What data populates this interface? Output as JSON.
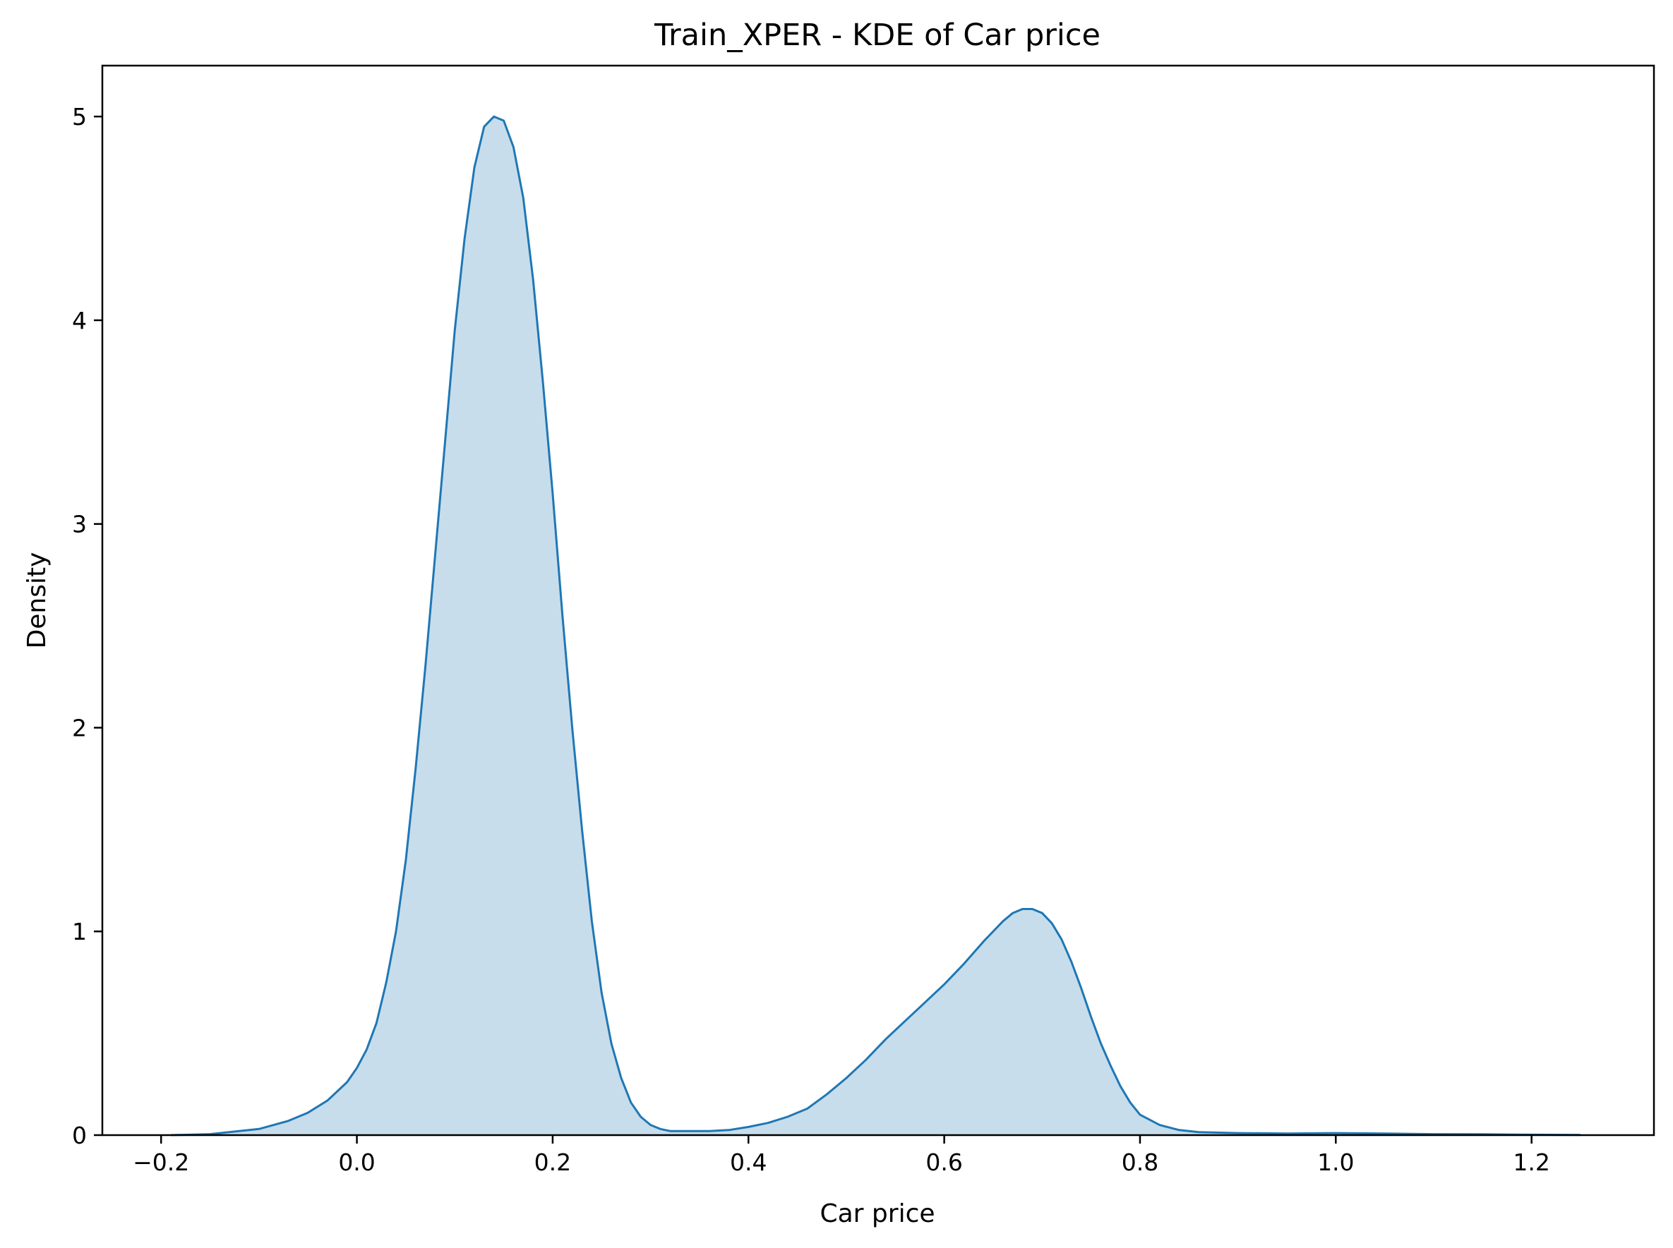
{
  "chart_data": {
    "type": "area",
    "title": "Train_XPER - KDE of Car price",
    "xlabel": "Car price",
    "ylabel": "Density",
    "xlim": [
      -0.26,
      1.325
    ],
    "ylim": [
      0,
      5.25
    ],
    "xticks": [
      -0.2,
      0.0,
      0.2,
      0.4,
      0.6,
      0.8,
      1.0,
      1.2
    ],
    "xtick_labels": [
      "−0.2",
      "0.0",
      "0.2",
      "0.4",
      "0.6",
      "0.8",
      "1.0",
      "1.2"
    ],
    "yticks": [
      0,
      1,
      2,
      3,
      4,
      5
    ],
    "ytick_labels": [
      "0",
      "1",
      "2",
      "3",
      "4",
      "5"
    ],
    "grid": false,
    "legend": "none",
    "colors": {
      "line": "#1f77b4",
      "fill": "#1f77b4"
    },
    "series": [
      {
        "x": [
          -0.19,
          -0.15,
          -0.1,
          -0.07,
          -0.05,
          -0.03,
          -0.01,
          0.0,
          0.01,
          0.02,
          0.03,
          0.04,
          0.05,
          0.06,
          0.07,
          0.08,
          0.09,
          0.1,
          0.11,
          0.12,
          0.13,
          0.14,
          0.15,
          0.16,
          0.17,
          0.18,
          0.19,
          0.2,
          0.21,
          0.22,
          0.23,
          0.24,
          0.25,
          0.26,
          0.27,
          0.28,
          0.29,
          0.3,
          0.31,
          0.32,
          0.33,
          0.34,
          0.36,
          0.38,
          0.4,
          0.42,
          0.44,
          0.46,
          0.48,
          0.5,
          0.52,
          0.54,
          0.56,
          0.58,
          0.6,
          0.62,
          0.64,
          0.66,
          0.67,
          0.68,
          0.69,
          0.7,
          0.71,
          0.72,
          0.73,
          0.74,
          0.75,
          0.76,
          0.77,
          0.78,
          0.79,
          0.8,
          0.82,
          0.84,
          0.86,
          0.9,
          0.95,
          1.0,
          1.05,
          1.1,
          1.15,
          1.2,
          1.25
        ],
        "y": [
          0.0,
          0.005,
          0.03,
          0.07,
          0.11,
          0.17,
          0.26,
          0.33,
          0.42,
          0.55,
          0.75,
          1.0,
          1.35,
          1.8,
          2.3,
          2.85,
          3.4,
          3.95,
          4.4,
          4.75,
          4.95,
          5.0,
          4.98,
          4.85,
          4.6,
          4.2,
          3.7,
          3.15,
          2.55,
          2.0,
          1.5,
          1.05,
          0.7,
          0.45,
          0.28,
          0.16,
          0.09,
          0.05,
          0.03,
          0.02,
          0.02,
          0.02,
          0.02,
          0.025,
          0.04,
          0.06,
          0.09,
          0.13,
          0.2,
          0.28,
          0.37,
          0.47,
          0.56,
          0.65,
          0.74,
          0.84,
          0.95,
          1.05,
          1.09,
          1.11,
          1.11,
          1.09,
          1.04,
          0.96,
          0.85,
          0.72,
          0.58,
          0.45,
          0.34,
          0.24,
          0.16,
          0.1,
          0.05,
          0.025,
          0.015,
          0.01,
          0.008,
          0.01,
          0.008,
          0.005,
          0.004,
          0.002,
          0.001
        ]
      }
    ]
  }
}
